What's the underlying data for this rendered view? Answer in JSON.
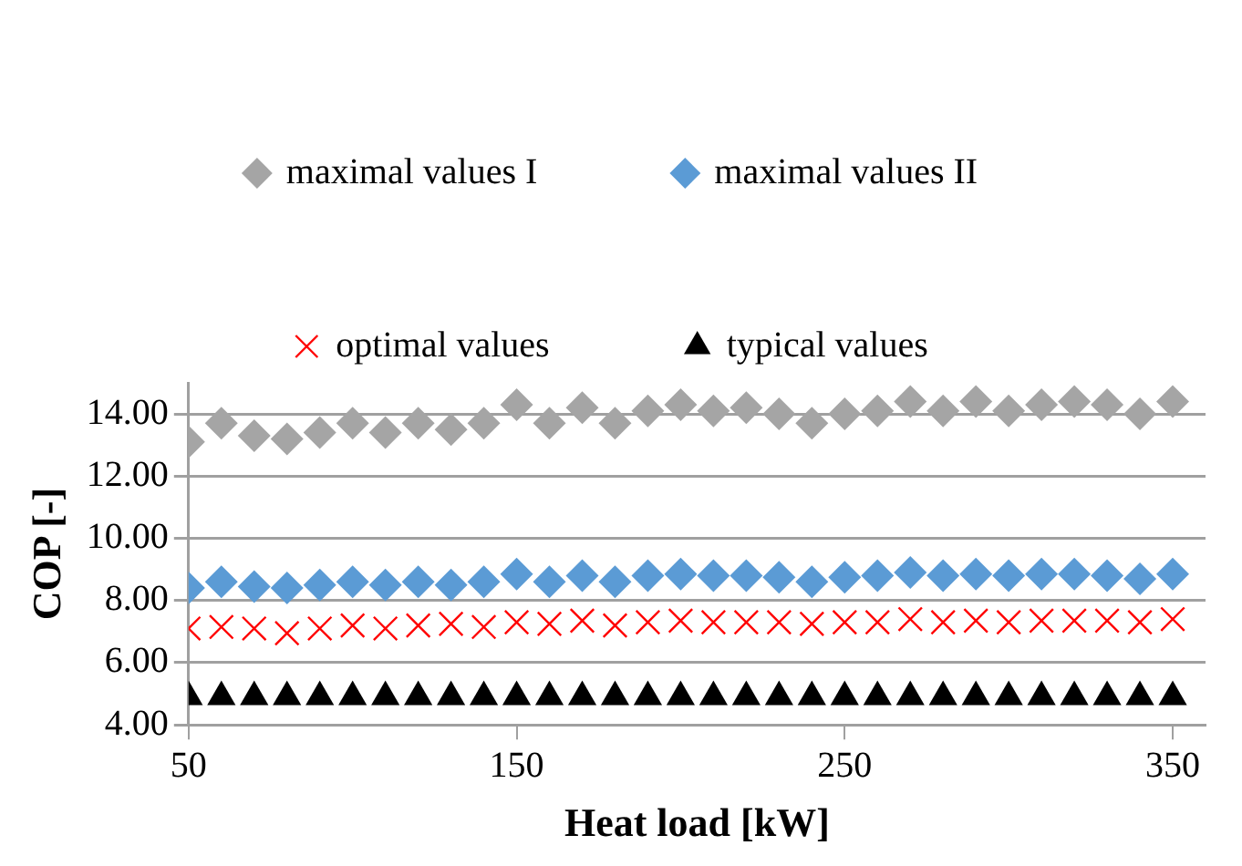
{
  "chart_data": {
    "type": "scatter",
    "xlabel": "Heat load [kW]",
    "ylabel": "COP [-]",
    "x": [
      50,
      60,
      70,
      80,
      90,
      100,
      110,
      120,
      130,
      140,
      150,
      160,
      170,
      180,
      190,
      200,
      210,
      220,
      230,
      240,
      250,
      260,
      270,
      280,
      290,
      300,
      310,
      320,
      330,
      340,
      350
    ],
    "series": [
      {
        "name": "maximal values I",
        "color": "#a5a5a5",
        "marker": "diamond",
        "values": [
          13.1,
          13.7,
          13.3,
          13.2,
          13.4,
          13.7,
          13.4,
          13.7,
          13.5,
          13.7,
          14.3,
          13.7,
          14.2,
          13.7,
          14.1,
          14.3,
          14.1,
          14.2,
          14.0,
          13.7,
          14.0,
          14.1,
          14.4,
          14.1,
          14.4,
          14.1,
          14.3,
          14.4,
          14.3,
          14.0,
          14.4
        ]
      },
      {
        "name": "maximal values II",
        "color": "#5b9bd5",
        "marker": "diamond",
        "values": [
          8.4,
          8.6,
          8.45,
          8.4,
          8.5,
          8.6,
          8.5,
          8.6,
          8.5,
          8.6,
          8.85,
          8.6,
          8.8,
          8.6,
          8.8,
          8.85,
          8.8,
          8.8,
          8.75,
          8.6,
          8.75,
          8.8,
          8.9,
          8.8,
          8.85,
          8.8,
          8.85,
          8.85,
          8.8,
          8.7,
          8.85
        ]
      },
      {
        "name": "optimal values",
        "color": "#ff0000",
        "marker": "cross",
        "values": [
          7.1,
          7.15,
          7.1,
          6.95,
          7.1,
          7.2,
          7.1,
          7.2,
          7.25,
          7.15,
          7.3,
          7.25,
          7.35,
          7.2,
          7.3,
          7.35,
          7.3,
          7.3,
          7.3,
          7.25,
          7.3,
          7.3,
          7.4,
          7.3,
          7.35,
          7.3,
          7.35,
          7.35,
          7.35,
          7.3,
          7.4
        ]
      },
      {
        "name": "typical values",
        "color": "#000000",
        "marker": "triangle",
        "values": [
          4.9,
          4.9,
          4.9,
          4.9,
          4.9,
          4.9,
          4.9,
          4.9,
          4.9,
          4.9,
          4.9,
          4.9,
          4.9,
          4.9,
          4.9,
          4.9,
          4.9,
          4.9,
          4.9,
          4.9,
          4.9,
          4.9,
          4.9,
          4.9,
          4.9,
          4.9,
          4.9,
          4.9,
          4.9,
          4.9,
          4.9
        ]
      }
    ],
    "xlim": [
      50,
      360
    ],
    "xticks": [
      50,
      150,
      250,
      350
    ],
    "ylim": [
      4,
      15
    ],
    "yticks": [
      {
        "value": 4,
        "label": "4.00"
      },
      {
        "value": 6,
        "label": "6.00"
      },
      {
        "value": 8,
        "label": "8.00"
      },
      {
        "value": 10,
        "label": "10.00"
      },
      {
        "value": 12,
        "label": "12.00"
      },
      {
        "value": 14,
        "label": "14.00"
      }
    ],
    "grid": "y",
    "legend": "top"
  }
}
